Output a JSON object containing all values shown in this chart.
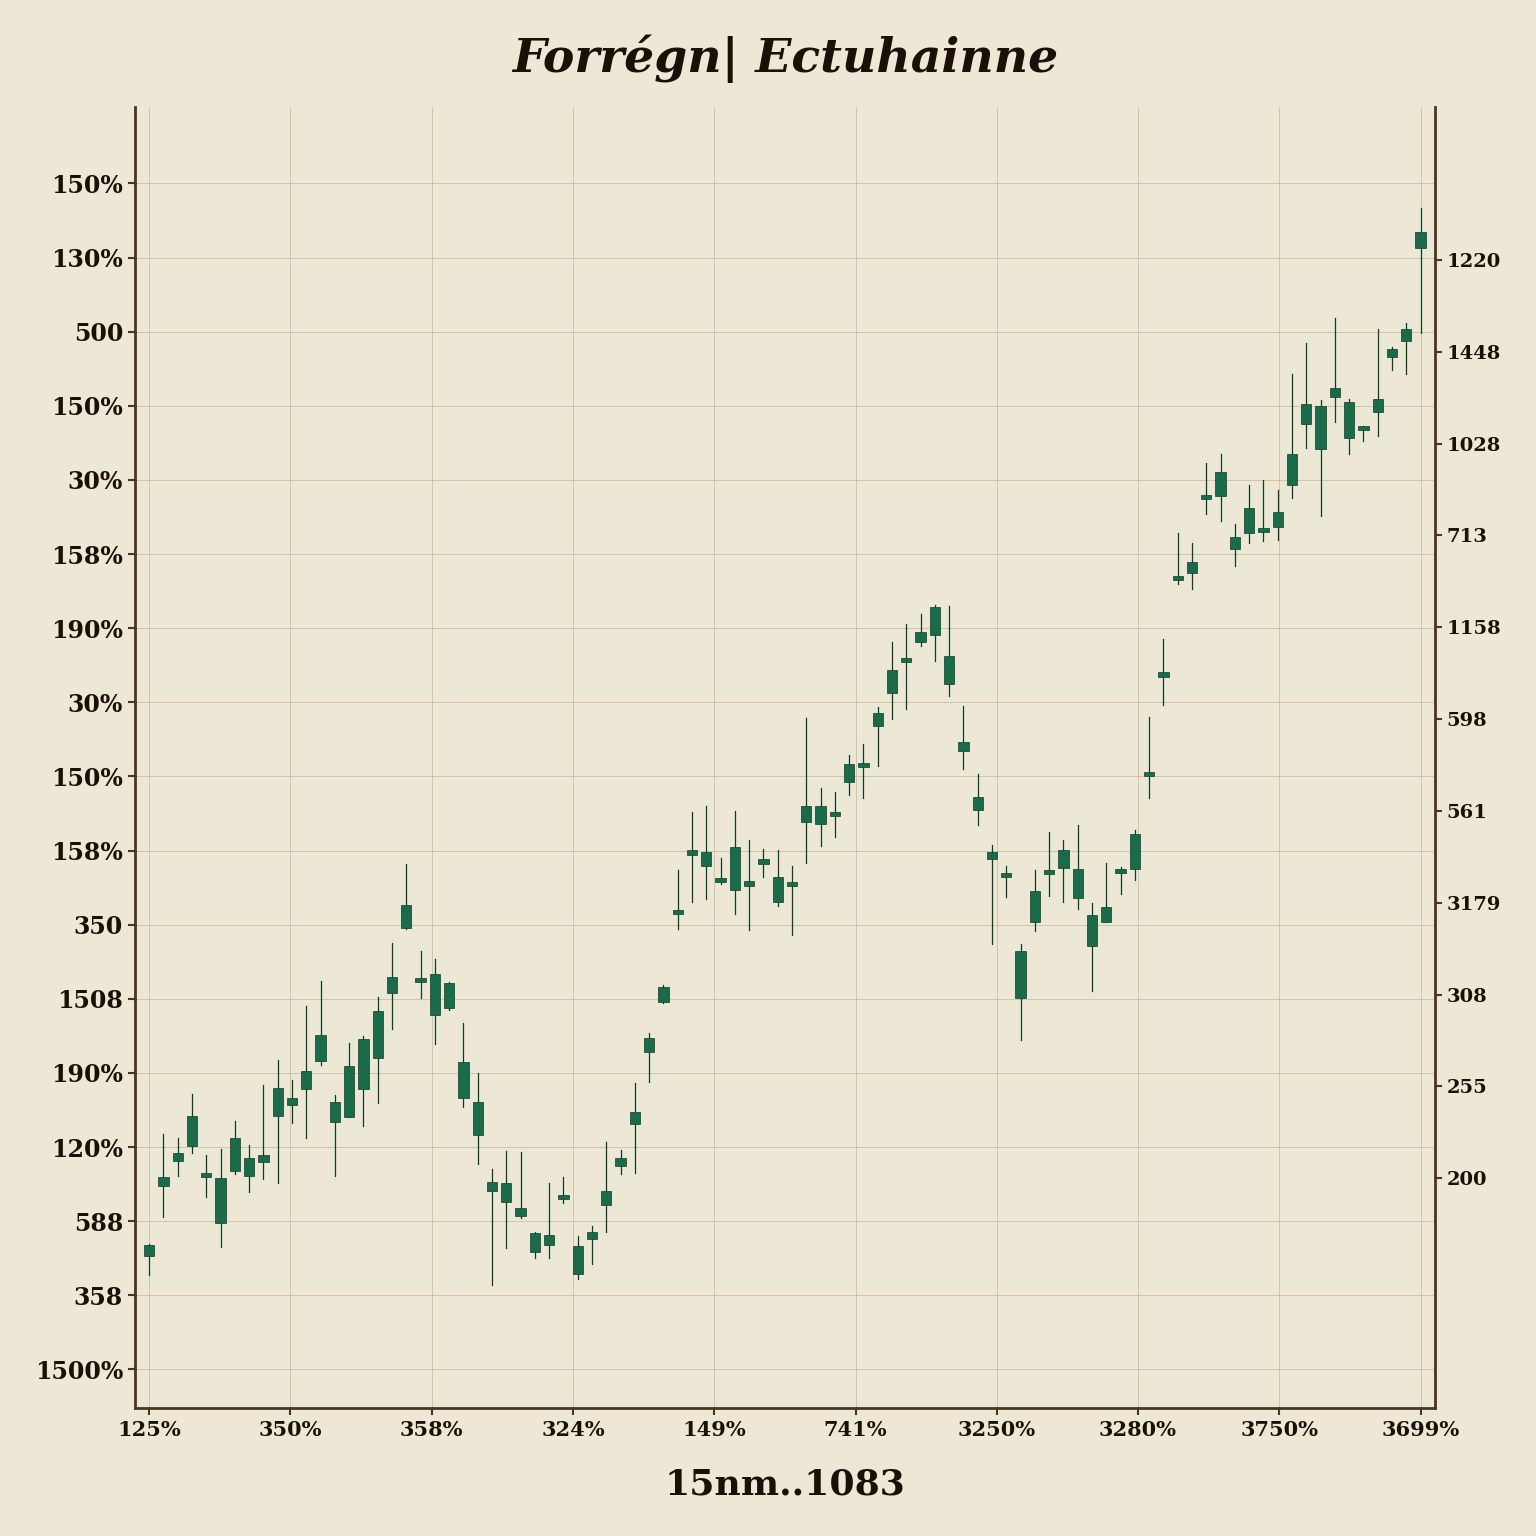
{
  "title": "Forrégn| Ectuhainne",
  "xlabel": "15nm..1083",
  "background_color": "#ede8d5",
  "plot_bg_color": "#ede8d5",
  "bar_color": "#1a6b4a",
  "bar_edge_color": "#0d3d28",
  "grid_color": "#c8b99a",
  "axis_color": "#4a3520",
  "text_color": "#1a1008",
  "x_labels": [
    "125%",
    "350%",
    "358%",
    "324%",
    "149%",
    "741%",
    "3250%",
    "3280%",
    "3750%",
    "3699%"
  ],
  "y_labels_left": [
    "1500%",
    "358",
    "588",
    "120%",
    "190%",
    "1508",
    "350",
    "158%",
    "150%",
    "30%",
    "190%",
    "158%",
    "30%",
    "150%",
    "500",
    "130%",
    "150%"
  ],
  "ylim_right_labels": [
    "1220",
    "1448",
    "1028",
    "713",
    "1158",
    "598",
    "561",
    "3179",
    "308",
    "255",
    "200"
  ],
  "num_bars": 90,
  "seed": 7
}
